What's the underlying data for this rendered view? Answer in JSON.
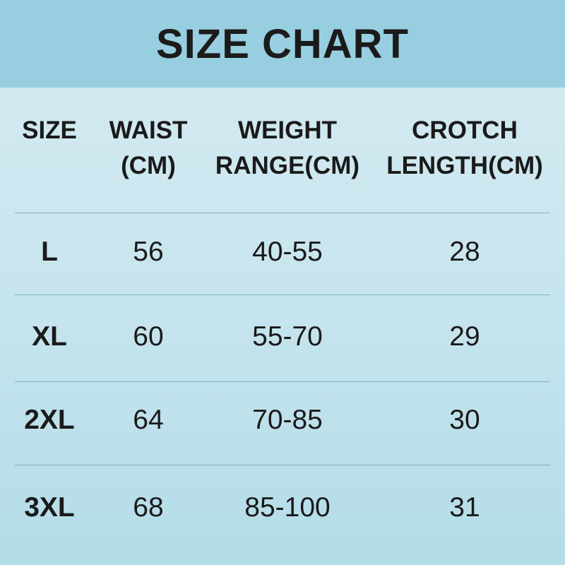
{
  "title": "SIZE CHART",
  "headers": [
    {
      "line1": "SIZE",
      "line2": ""
    },
    {
      "line1": "WAIST",
      "line2": "(CM)"
    },
    {
      "line1": "WEIGHT",
      "line2": "RANGE(CM)"
    },
    {
      "line1": "CROTCH",
      "line2": "LENGTH(CM)"
    }
  ],
  "rows": [
    [
      "L",
      "56",
      "40-55",
      "28"
    ],
    [
      "XL",
      "60",
      "55-70",
      "29"
    ],
    [
      "2XL",
      "64",
      "70-85",
      "30"
    ],
    [
      "3XL",
      "68",
      "85-100",
      "31"
    ]
  ],
  "colors": {
    "banner": "#97cfe0",
    "divider": "#7fb2c3",
    "text": "#1a1a1a"
  }
}
